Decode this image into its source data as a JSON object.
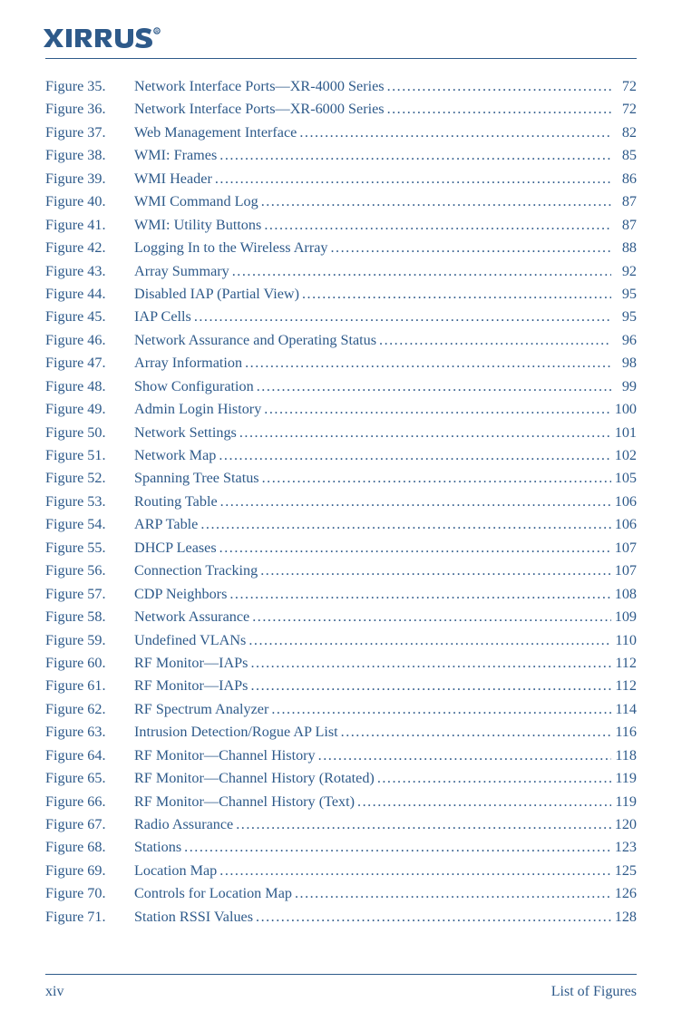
{
  "brand": {
    "name": "XIRRUS",
    "color": "#2e5a8a"
  },
  "footer": {
    "page": "xiv",
    "title": "List of Figures"
  },
  "entries": [
    {
      "num": "Figure 35.",
      "title": "Network Interface Ports—XR-4000 Series",
      "page": "72"
    },
    {
      "num": "Figure 36.",
      "title": "Network Interface Ports—XR-6000 Series",
      "page": "72"
    },
    {
      "num": "Figure 37.",
      "title": "Web Management Interface ",
      "page": "82"
    },
    {
      "num": "Figure 38.",
      "title": "WMI: Frames ",
      "page": "85"
    },
    {
      "num": "Figure 39.",
      "title": "WMI Header",
      "page": "86"
    },
    {
      "num": "Figure 40.",
      "title": "WMI Command Log ",
      "page": "87"
    },
    {
      "num": "Figure 41.",
      "title": "WMI: Utility Buttons",
      "page": "87"
    },
    {
      "num": "Figure 42.",
      "title": "Logging In to the Wireless Array",
      "page": "88"
    },
    {
      "num": "Figure 43.",
      "title": "Array Summary",
      "page": "92"
    },
    {
      "num": "Figure 44.",
      "title": "Disabled IAP (Partial View)",
      "page": "95"
    },
    {
      "num": "Figure 45.",
      "title": "IAP Cells",
      "page": "95"
    },
    {
      "num": "Figure 46.",
      "title": "Network Assurance and Operating Status",
      "page": "96"
    },
    {
      "num": "Figure 47.",
      "title": "Array Information ",
      "page": "98"
    },
    {
      "num": "Figure 48.",
      "title": "Show Configuration",
      "page": "99"
    },
    {
      "num": "Figure 49.",
      "title": "Admin Login History",
      "page": "100"
    },
    {
      "num": "Figure 50.",
      "title": "Network Settings",
      "page": "101"
    },
    {
      "num": "Figure 51.",
      "title": "Network Map ",
      "page": "102"
    },
    {
      "num": "Figure 52.",
      "title": "Spanning Tree Status",
      "page": "105"
    },
    {
      "num": "Figure 53.",
      "title": "Routing Table",
      "page": "106"
    },
    {
      "num": "Figure 54.",
      "title": "ARP Table",
      "page": "106"
    },
    {
      "num": "Figure 55.",
      "title": "DHCP Leases",
      "page": "107"
    },
    {
      "num": "Figure 56.",
      "title": "Connection Tracking",
      "page": "107"
    },
    {
      "num": "Figure 57.",
      "title": "CDP Neighbors",
      "page": "108"
    },
    {
      "num": "Figure 58.",
      "title": "Network Assurance",
      "page": "109"
    },
    {
      "num": "Figure 59.",
      "title": "Undefined VLANs",
      "page": "110"
    },
    {
      "num": "Figure 60.",
      "title": "RF Monitor—IAPs ",
      "page": "112"
    },
    {
      "num": "Figure 61.",
      "title": "RF Monitor—IAPs ",
      "page": "112"
    },
    {
      "num": "Figure 62.",
      "title": "RF Spectrum Analyzer",
      "page": "114"
    },
    {
      "num": "Figure 63.",
      "title": "Intrusion Detection/Rogue AP List",
      "page": "116"
    },
    {
      "num": "Figure 64.",
      "title": "RF Monitor—Channel History",
      "page": "118"
    },
    {
      "num": "Figure 65.",
      "title": "RF Monitor—Channel History (Rotated)",
      "page": "119"
    },
    {
      "num": "Figure 66.",
      "title": "RF Monitor—Channel History (Text)",
      "page": "119"
    },
    {
      "num": "Figure 67.",
      "title": "Radio Assurance",
      "page": "120"
    },
    {
      "num": "Figure 68.",
      "title": "Stations",
      "page": "123"
    },
    {
      "num": "Figure 69.",
      "title": "Location Map",
      "page": "125"
    },
    {
      "num": "Figure 70.",
      "title": "Controls for Location Map",
      "page": "126"
    },
    {
      "num": "Figure 71.",
      "title": "Station RSSI Values ",
      "page": "128"
    }
  ]
}
